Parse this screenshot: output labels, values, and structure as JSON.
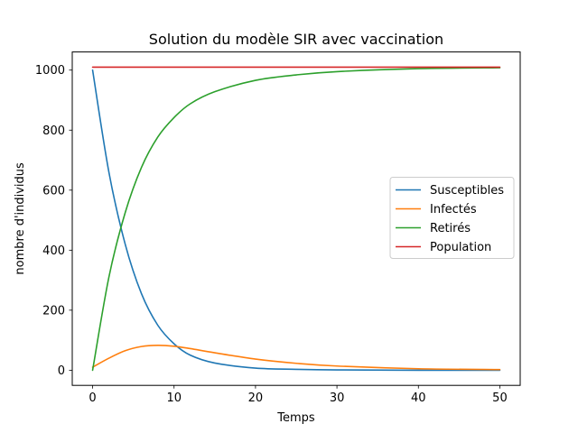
{
  "chart_data": {
    "type": "line",
    "title": "Solution du modèle SIR avec vaccination",
    "xlabel": "Temps",
    "ylabel": "nombre d'individus",
    "xlim": [
      -2.5,
      52.5
    ],
    "ylim": [
      -50.5,
      1060.5
    ],
    "xticks": [
      0,
      10,
      20,
      30,
      40,
      50
    ],
    "yticks": [
      0,
      200,
      400,
      600,
      800,
      1000
    ],
    "grid": false,
    "legend_position": "center-right",
    "x": [
      0,
      2,
      4,
      6,
      8,
      10,
      12,
      15,
      20,
      25,
      30,
      40,
      50
    ],
    "series": [
      {
        "name": "Susceptibles",
        "color": "#1f77b4",
        "values": [
          1000,
          660,
          420,
          255,
          150,
          88,
          50,
          24,
          7,
          3,
          1,
          0,
          0
        ]
      },
      {
        "name": "Infectés",
        "color": "#ff7f0e",
        "values": [
          10,
          40,
          65,
          79,
          83,
          80,
          72,
          58,
          37,
          23,
          14,
          5,
          2
        ]
      },
      {
        "name": "Retirés",
        "color": "#2ca02c",
        "values": [
          0,
          310,
          525,
          676,
          777,
          842,
          888,
          928,
          966,
          984,
          995,
          1005,
          1008
        ]
      },
      {
        "name": "Population",
        "color": "#d62728",
        "values": [
          1010,
          1010,
          1010,
          1010,
          1010,
          1010,
          1010,
          1010,
          1010,
          1010,
          1010,
          1010,
          1010
        ]
      }
    ]
  }
}
